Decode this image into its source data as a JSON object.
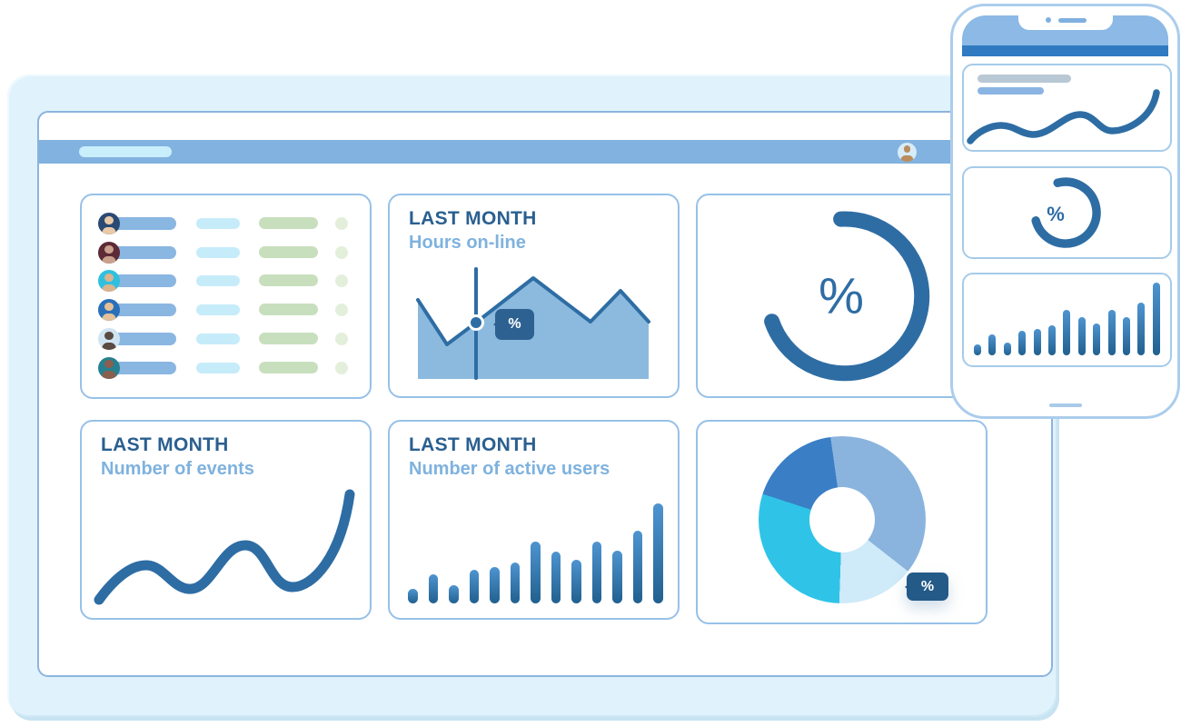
{
  "colors": {
    "accent_dark": "#2e6da4",
    "title_navy": "#2a5f90",
    "subtitle_blue": "#7fb2de",
    "toolbar_blue": "#82b2e0",
    "panel_bg": "#e0f2fb",
    "card_border": "#97c1e8",
    "area_fill": "#8cbade",
    "tooltip_bg": "#2d6191",
    "pie_tooltip_bg": "#235a88",
    "pill_blue": "#8ab6e2",
    "pill_cyan": "#c6ecfa",
    "pill_green": "#c8dfbe"
  },
  "browser": {
    "toolbar": {
      "address_pill": "address-bar-pill",
      "avatar_icon": "user-avatar",
      "avatar_bg": "#d6ecf7",
      "avatar_fg": "#b98d5f"
    }
  },
  "cards": {
    "users": {
      "rows": [
        {
          "icon": "user-avatar",
          "bg": "#2b4a73",
          "fg": "#e9c9a8"
        },
        {
          "icon": "user-avatar",
          "bg": "#5d2a35",
          "fg": "#caa08e"
        },
        {
          "icon": "user-avatar",
          "bg": "#2fc0df",
          "fg": "#d9b48f"
        },
        {
          "icon": "user-avatar",
          "bg": "#2a6fb8",
          "fg": "#e3c09a"
        },
        {
          "icon": "user-avatar",
          "bg": "#cfe4f1",
          "fg": "#5a4a42"
        },
        {
          "icon": "user-avatar",
          "bg": "#27808f",
          "fg": "#8a5f4d"
        }
      ]
    },
    "hours": {
      "title": "LAST MONTH",
      "subtitle": "Hours on-line",
      "tooltip": "%"
    },
    "gauge": {
      "label": "%"
    },
    "events": {
      "title": "LAST MONTH",
      "subtitle": "Number of events"
    },
    "active": {
      "title": "LAST MONTH",
      "subtitle": "Number of active users"
    },
    "pie": {
      "tooltip": "%"
    }
  },
  "phone": {
    "skeleton_lines": [
      "skeleton-line-gray",
      "skeleton-line-blue"
    ],
    "gauge_label": "%",
    "notch_icons": [
      "camera-dot-icon",
      "speaker-icon"
    ],
    "home_indicator": "home-indicator"
  },
  "chart_data": [
    {
      "id": "hours_online_area",
      "type": "area",
      "title": "LAST MONTH",
      "subtitle": "Hours on-line",
      "x": [
        1,
        2,
        3,
        4,
        5,
        6,
        7
      ],
      "values": [
        7.9,
        3.5,
        5.6,
        10,
        5.7,
        8.8,
        5.7
      ],
      "marker_index": 2,
      "marker_label": "%",
      "ylim": [
        0,
        10
      ],
      "grid": false
    },
    {
      "id": "percent_gauge",
      "type": "donut-gauge",
      "arc_pct": 70,
      "label": "%",
      "gap_position": "upper-left"
    },
    {
      "id": "events_line",
      "type": "line",
      "title": "LAST MONTH",
      "subtitle": "Number of events",
      "x": [
        1,
        2,
        3,
        4,
        5,
        6
      ],
      "values": [
        0.3,
        3.3,
        1.4,
        5.2,
        1.5,
        9.9
      ],
      "ylim": [
        0,
        10
      ],
      "grid": false
    },
    {
      "id": "active_users_bar",
      "type": "bar",
      "title": "LAST MONTH",
      "subtitle": "Number of active users",
      "values": [
        1.5,
        2.9,
        1.8,
        3.4,
        3.6,
        4.1,
        6.2,
        5.2,
        4.4,
        6.2,
        5.3,
        7.3,
        10
      ],
      "ylim": [
        0,
        10
      ],
      "grid": false
    },
    {
      "id": "user_share_donut",
      "type": "pie",
      "start_deg": -8,
      "inner_radius_pct": 39,
      "tooltip": "%",
      "slices": [
        {
          "name": "slice-1",
          "deg": 136,
          "color": "#8ab4de"
        },
        {
          "name": "slice-2",
          "deg": 54,
          "color": "#cfeaf8"
        },
        {
          "name": "slice-3",
          "deg": 106,
          "color": "#2fc4e7"
        },
        {
          "name": "slice-4",
          "deg": 64,
          "color": "#3a7ec6"
        }
      ]
    },
    {
      "id": "phone_wave",
      "type": "line",
      "values": [
        1,
        3.2,
        2.2,
        4.8,
        2.6,
        8.5
      ]
    },
    {
      "id": "phone_gauge",
      "type": "donut-gauge",
      "arc_pct": 72,
      "label": "%",
      "gap_position": "upper-left"
    },
    {
      "id": "phone_bars",
      "type": "bar",
      "values": [
        1.5,
        2.9,
        1.8,
        3.4,
        3.6,
        4.1,
        6.2,
        5.2,
        4.4,
        6.2,
        5.3,
        7.3,
        10
      ]
    }
  ]
}
